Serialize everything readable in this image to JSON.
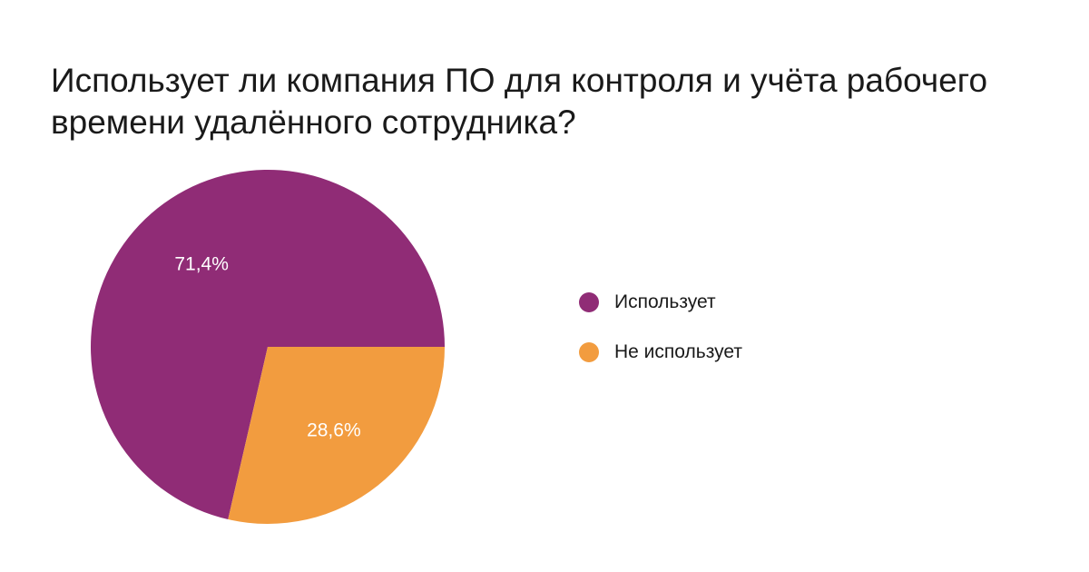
{
  "chart_data": {
    "type": "pie",
    "title": "Использует ли компания ПО для контроля и учёта рабочего времени удалённого сотрудника?",
    "categories": [
      "Использует",
      "Не использует"
    ],
    "values": [
      71.4,
      28.6
    ],
    "value_labels": [
      "71,4%",
      "28,6%"
    ],
    "colors": [
      "#902c76",
      "#f29c3f"
    ],
    "legend_position": "right",
    "start_angle_deg": 0,
    "direction": "clockwise"
  }
}
